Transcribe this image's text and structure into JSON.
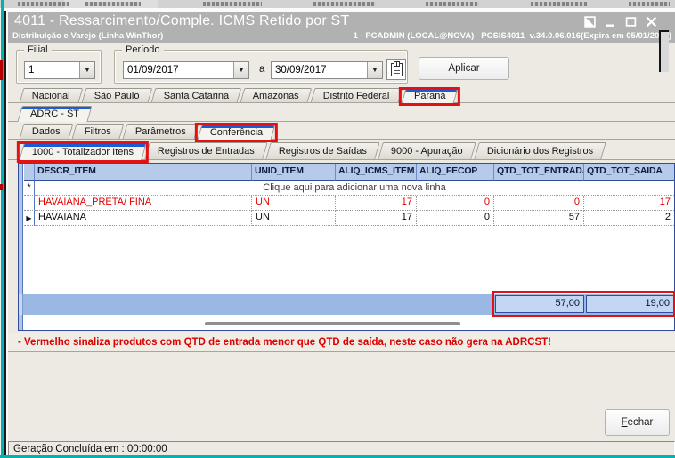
{
  "window": {
    "title": "4011 - Ressarcimento/Comple. ICMS Retido por ST",
    "subtitle_left": "Distribuição e Varejo (Linha WinThor)",
    "subtitle_right": "1 - PCADMIN (LOCAL@NOVA)   PCSIS4011  v.34.0.06.016(Expira em 05/01/2025)"
  },
  "filters": {
    "filial_label": "Filial",
    "filial_value": "1",
    "periodo_label": "Período",
    "periodo_start": "01/09/2017",
    "periodo_sep": "a",
    "periodo_end": "30/09/2017",
    "aplicar_label": "Aplicar"
  },
  "tabs": {
    "states": [
      "Nacional",
      "São Paulo",
      "Santa Catarina",
      "Amazonas",
      "Distrito Federal",
      "Paraná"
    ],
    "states_selected": "Paraná",
    "adrc": "ADRC - ST",
    "sections": [
      "Dados",
      "Filtros",
      "Parâmetros",
      "Conferência"
    ],
    "sections_selected": "Conferência",
    "registers": [
      "1000 - Totalizador Itens",
      "Registros de Entradas",
      "Registros de Saídas",
      "9000 - Apuração",
      "Dicionário dos Registros"
    ],
    "registers_selected": "1000 - Totalizador Itens"
  },
  "grid": {
    "columns": [
      "DESCR_ITEM",
      "UNID_ITEM",
      "ALIQ_ICMS_ITEM",
      "ALIQ_FECOP",
      "QTD_TOT_ENTRADA",
      "QTD_TOT_SAIDA"
    ],
    "new_row_hint": "Clique aqui para adicionar uma nova linha",
    "rows": [
      {
        "descr": "HAVAIANA_PRETA/ FINA",
        "unid": "UN",
        "aliq_icms": "17",
        "aliq_fecop": "0",
        "qtd_entrada": "0",
        "qtd_saida": "17",
        "alert": true,
        "current": false
      },
      {
        "descr": "HAVAIANA",
        "unid": "UN",
        "aliq_icms": "17",
        "aliq_fecop": "0",
        "qtd_entrada": "57",
        "qtd_saida": "2",
        "alert": false,
        "current": true
      }
    ],
    "totals": {
      "qtd_entrada": "57,00",
      "qtd_saida": "19,00"
    }
  },
  "warning": "- Vermelho sinaliza produtos com QTD de entrada menor que QTD de saída, neste caso não gera na ADRCST!",
  "footer": {
    "fechar_label": "Fechar",
    "status": "Geração Concluída em : 00:00:00"
  },
  "icons": {
    "dropdown_arrow": "▼",
    "new_row_marker": "*",
    "current_row_marker": "▶"
  },
  "colors": {
    "annotation_red": "#e21212",
    "alert_text_red": "#e00000",
    "grid_header_blue": "#b6cbe9",
    "totals_band_blue": "#9bb7e3",
    "titlebar_gray": "#b1b1b1",
    "edge_teal": "#00b3b3"
  }
}
